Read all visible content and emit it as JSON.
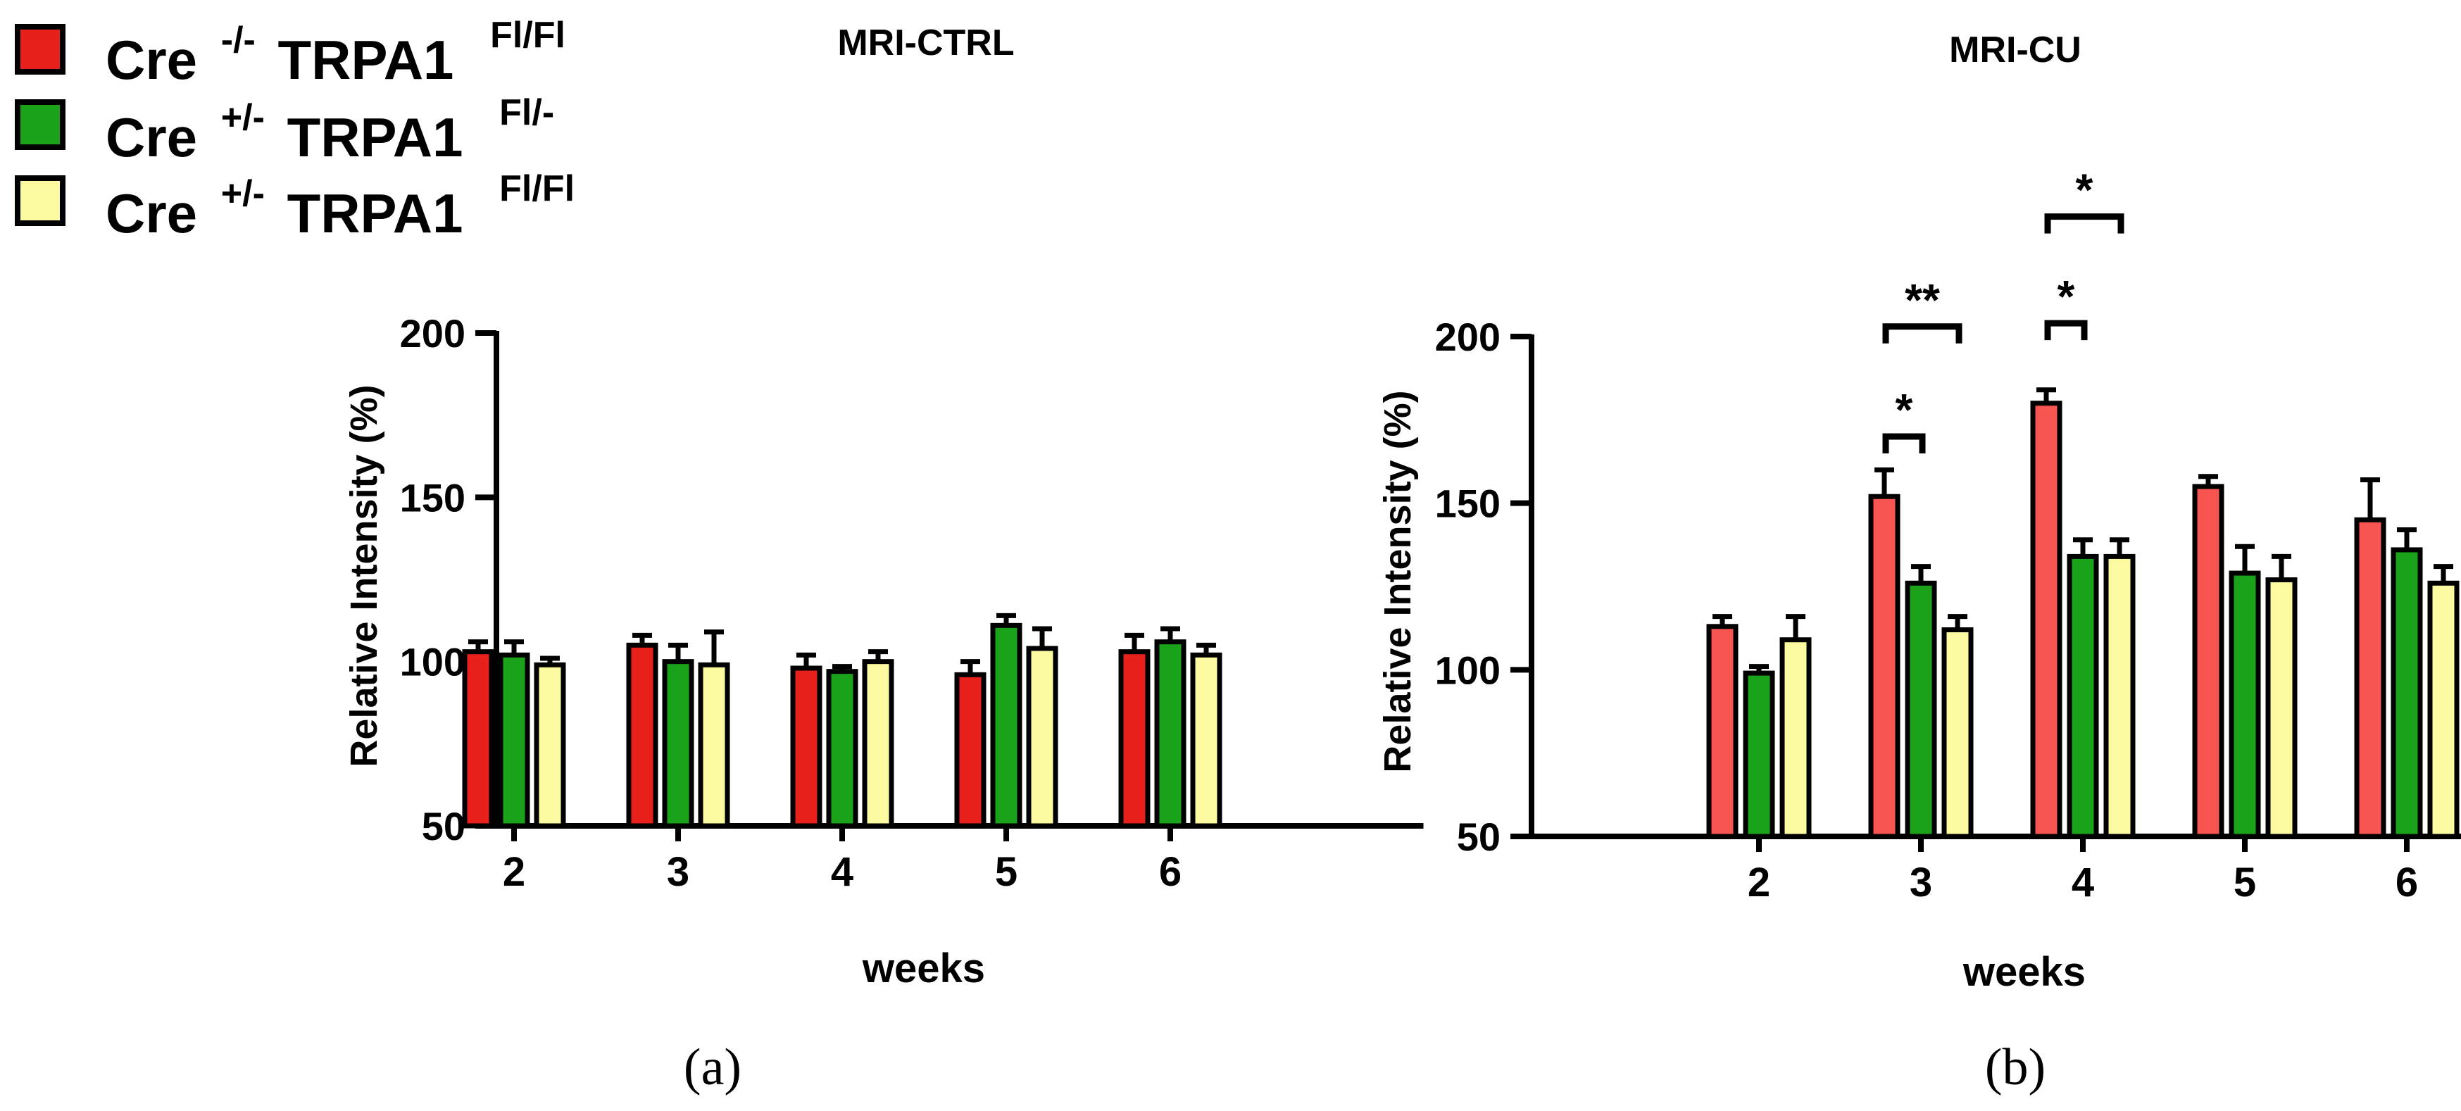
{
  "legend": {
    "items": [
      {
        "prefix": "Cre",
        "sup1": "-/-",
        "gene": "TRPA1",
        "sup2": "Fl/Fl",
        "color": "#e8201c"
      },
      {
        "prefix": "Cre",
        "sup1": "+/-",
        "gene": "TRPA1",
        "sup2": "Fl/-",
        "color": "#1aa31a"
      },
      {
        "prefix": "Cre",
        "sup1": "+/-",
        "gene": "TRPA1",
        "sup2": "Fl/Fl",
        "color": "#fbfaa0"
      }
    ]
  },
  "chart_data": [
    {
      "type": "bar",
      "panel_label": "(a)",
      "title": "MRI-CTRL",
      "xlabel": "weeks",
      "ylabel": "Relative Intensity (%)",
      "ylim": [
        50,
        200
      ],
      "yticks": [
        50,
        100,
        150,
        200
      ],
      "categories": [
        "2",
        "3",
        "4",
        "5",
        "6"
      ],
      "series": [
        {
          "name": "Cre -/- TRPA1 Fl/Fl",
          "color": "#e8201c",
          "values": [
            103,
            105,
            98,
            96,
            103
          ],
          "errors": [
            3,
            3,
            4,
            4,
            5
          ]
        },
        {
          "name": "Cre +/- TRPA1 Fl/-",
          "color": "#1aa31a",
          "values": [
            102,
            100,
            97,
            111,
            106
          ],
          "errors": [
            4,
            5,
            1.5,
            3,
            4
          ]
        },
        {
          "name": "Cre +/- TRPA1 Fl/Fl",
          "color": "#fbfaa0",
          "values": [
            99,
            99,
            100,
            104,
            102
          ],
          "errors": [
            2,
            10,
            3,
            6,
            3
          ]
        }
      ],
      "significance": []
    },
    {
      "type": "bar",
      "panel_label": "(b)",
      "title": "MRI-CU",
      "xlabel": "weeks",
      "ylabel": "Relative Intensity (%)",
      "ylim": [
        50,
        200
      ],
      "yticks": [
        50,
        100,
        150,
        200
      ],
      "categories": [
        "2",
        "3",
        "4",
        "5",
        "6"
      ],
      "series": [
        {
          "name": "Cre -/- TRPA1 Fl/Fl",
          "color": "#f75551",
          "values": [
            113,
            152,
            180,
            155,
            145
          ],
          "errors": [
            3,
            8,
            4,
            3,
            12
          ]
        },
        {
          "name": "Cre +/- TRPA1 Fl/-",
          "color": "#1aa31a",
          "values": [
            99,
            126,
            134,
            129,
            136
          ],
          "errors": [
            2,
            5,
            5,
            8,
            6
          ]
        },
        {
          "name": "Cre +/- TRPA1 Fl/Fl",
          "color": "#fbfaa0",
          "values": [
            109,
            112,
            134,
            127,
            126
          ],
          "errors": [
            7,
            4,
            5,
            7,
            5
          ]
        }
      ],
      "significance": [
        {
          "category": 1,
          "from_series": 0,
          "to_series": 1,
          "level": 170,
          "label": "*"
        },
        {
          "category": 1,
          "from_series": 0,
          "to_series": 2,
          "level": 203,
          "label": "**"
        },
        {
          "category": 2,
          "from_series": 0,
          "to_series": 1,
          "level": 204,
          "label": "*"
        },
        {
          "category": 2,
          "from_series": 0,
          "to_series": 2,
          "level": 236,
          "label": "*"
        }
      ]
    }
  ]
}
